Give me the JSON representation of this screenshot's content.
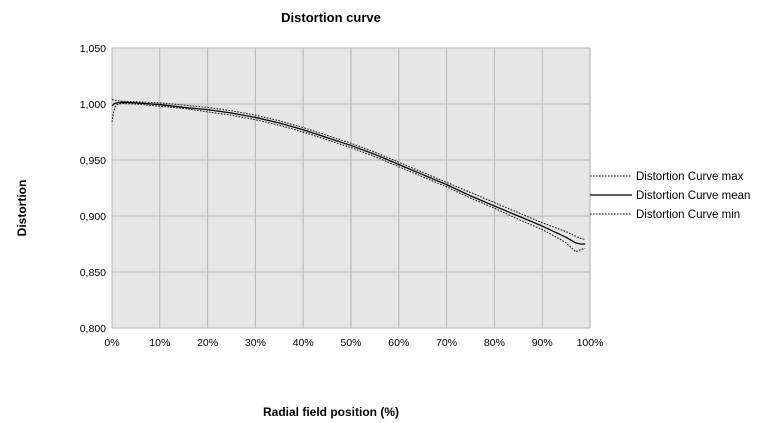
{
  "chart_data": {
    "type": "line",
    "title": "Distortion curve",
    "xlabel": "Radial field position (%)",
    "ylabel": "Distortion",
    "xlim": [
      0,
      100
    ],
    "ylim": [
      0.8,
      1.05
    ],
    "x_tick_values": [
      0,
      10,
      20,
      30,
      40,
      50,
      60,
      70,
      80,
      90,
      100
    ],
    "x_tick_labels": [
      "0%",
      "10%",
      "20%",
      "30%",
      "40%",
      "50%",
      "60%",
      "70%",
      "80%",
      "90%",
      "100%"
    ],
    "y_tick_values": [
      0.8,
      0.85,
      0.9,
      0.95,
      1.0,
      1.05
    ],
    "y_tick_labels": [
      "0,800",
      "0,850",
      "0,900",
      "0,950",
      "1,000",
      "1,050"
    ],
    "grid": true,
    "plot_background": "#e6e6e6",
    "grid_color": "#b4b4b4",
    "legend_position": "right",
    "series": [
      {
        "name": "Distortion Curve max",
        "style": "dotted",
        "x": [
          0,
          0.5,
          1,
          2,
          5,
          10,
          15,
          20,
          25,
          30,
          35,
          40,
          45,
          50,
          55,
          60,
          65,
          70,
          75,
          80,
          85,
          90,
          95,
          97,
          98,
          99
        ],
        "y": [
          1.004,
          1.0035,
          1.003,
          1.0025,
          1.002,
          1.001,
          0.999,
          0.997,
          0.994,
          0.99,
          0.985,
          0.979,
          0.972,
          0.965,
          0.957,
          0.948,
          0.939,
          0.93,
          0.921,
          0.912,
          0.903,
          0.894,
          0.886,
          0.882,
          0.88,
          0.879
        ]
      },
      {
        "name": "Distortion Curve mean",
        "style": "solid",
        "x": [
          0,
          0.5,
          1,
          2,
          5,
          10,
          15,
          20,
          25,
          30,
          35,
          40,
          45,
          50,
          55,
          60,
          65,
          70,
          75,
          80,
          85,
          90,
          95,
          97,
          98,
          99
        ],
        "y": [
          0.998,
          1.0005,
          1.001,
          1.0015,
          1.001,
          0.9995,
          0.997,
          0.995,
          0.992,
          0.988,
          0.983,
          0.977,
          0.97,
          0.963,
          0.955,
          0.946,
          0.937,
          0.928,
          0.918,
          0.909,
          0.9,
          0.891,
          0.881,
          0.876,
          0.875,
          0.875
        ]
      },
      {
        "name": "Distortion Curve min",
        "style": "dotted",
        "x": [
          0,
          0.3,
          0.6,
          1,
          2,
          5,
          10,
          15,
          20,
          25,
          30,
          35,
          40,
          45,
          50,
          55,
          60,
          65,
          70,
          75,
          80,
          85,
          90,
          93,
          95,
          96,
          97,
          98,
          99
        ],
        "y": [
          0.984,
          0.992,
          0.997,
          0.9995,
          1.0005,
          1.0,
          0.998,
          0.996,
          0.993,
          0.99,
          0.986,
          0.981,
          0.975,
          0.968,
          0.961,
          0.953,
          0.944,
          0.935,
          0.926,
          0.916,
          0.907,
          0.897,
          0.888,
          0.881,
          0.876,
          0.872,
          0.868,
          0.87,
          0.871
        ]
      }
    ]
  }
}
